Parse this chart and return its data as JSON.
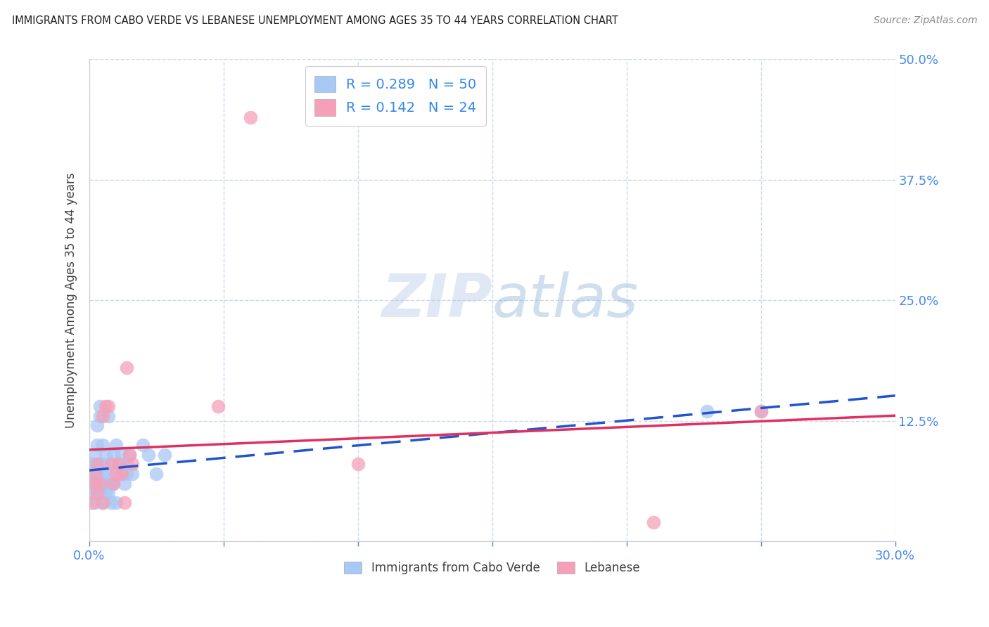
{
  "title": "IMMIGRANTS FROM CABO VERDE VS LEBANESE UNEMPLOYMENT AMONG AGES 35 TO 44 YEARS CORRELATION CHART",
  "source": "Source: ZipAtlas.com",
  "ylabel": "Unemployment Among Ages 35 to 44 years",
  "xlim": [
    0.0,
    0.3
  ],
  "ylim": [
    0.0,
    0.5
  ],
  "xticks": [
    0.0,
    0.05,
    0.1,
    0.15,
    0.2,
    0.25,
    0.3
  ],
  "yticks": [
    0.0,
    0.125,
    0.25,
    0.375,
    0.5
  ],
  "r_cabo": 0.289,
  "n_cabo": 50,
  "r_lebanese": 0.142,
  "n_lebanese": 24,
  "legend_labels": [
    "Immigrants from Cabo Verde",
    "Lebanese"
  ],
  "cabo_color": "#a8c8f5",
  "lebanese_color": "#f5a0b8",
  "cabo_line_color": "#2255cc",
  "lebanese_line_color": "#e03060",
  "cabo_x": [
    0.001,
    0.001,
    0.001,
    0.001,
    0.002,
    0.002,
    0.002,
    0.002,
    0.002,
    0.003,
    0.003,
    0.003,
    0.003,
    0.003,
    0.004,
    0.004,
    0.004,
    0.004,
    0.005,
    0.005,
    0.005,
    0.005,
    0.005,
    0.006,
    0.006,
    0.006,
    0.007,
    0.007,
    0.007,
    0.008,
    0.008,
    0.008,
    0.009,
    0.009,
    0.01,
    0.01,
    0.011,
    0.012,
    0.012,
    0.013,
    0.014,
    0.014,
    0.015,
    0.016,
    0.02,
    0.022,
    0.025,
    0.028,
    0.23,
    0.25
  ],
  "cabo_y": [
    0.05,
    0.06,
    0.07,
    0.08,
    0.04,
    0.06,
    0.07,
    0.08,
    0.09,
    0.05,
    0.06,
    0.07,
    0.1,
    0.12,
    0.05,
    0.08,
    0.13,
    0.14,
    0.04,
    0.06,
    0.07,
    0.08,
    0.1,
    0.05,
    0.06,
    0.09,
    0.05,
    0.07,
    0.13,
    0.04,
    0.06,
    0.08,
    0.06,
    0.09,
    0.04,
    0.1,
    0.08,
    0.07,
    0.09,
    0.06,
    0.07,
    0.08,
    0.09,
    0.07,
    0.1,
    0.09,
    0.07,
    0.09,
    0.135,
    0.135
  ],
  "lebanese_x": [
    0.001,
    0.002,
    0.002,
    0.003,
    0.003,
    0.004,
    0.005,
    0.005,
    0.006,
    0.007,
    0.008,
    0.009,
    0.01,
    0.011,
    0.012,
    0.013,
    0.014,
    0.015,
    0.016,
    0.048,
    0.06,
    0.1,
    0.21,
    0.25
  ],
  "lebanese_y": [
    0.04,
    0.06,
    0.07,
    0.05,
    0.08,
    0.06,
    0.04,
    0.13,
    0.14,
    0.14,
    0.08,
    0.06,
    0.07,
    0.08,
    0.07,
    0.04,
    0.18,
    0.09,
    0.08,
    0.14,
    0.44,
    0.08,
    0.02,
    0.135
  ],
  "background_color": "#ffffff",
  "grid_color": "#ccd8ee",
  "title_color": "#202020",
  "axis_label_color": "#404040",
  "tick_color_right": "#4488ee",
  "tick_color_bottom": "#4488ee"
}
